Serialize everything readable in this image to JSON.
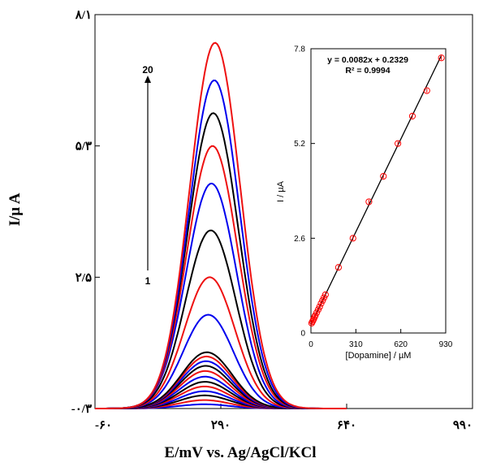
{
  "chart_data": [
    {
      "type": "line",
      "xlabel": "E/mV vs. Ag/AgCl/KCl",
      "ylabel": "I/µ A",
      "x_ticks": [
        "-۶۰",
        "۲۹۰",
        "۶۴۰",
        "۹۹۰"
      ],
      "x_tick_values": [
        -60,
        290,
        640,
        990
      ],
      "y_ticks": [
        "-۰/۳",
        "۲/۵",
        "۵/۳",
        "۸/۱"
      ],
      "y_tick_values": [
        -0.3,
        2.5,
        5.3,
        8.1
      ],
      "xlim": [
        -60,
        990
      ],
      "ylim": [
        -0.3,
        8.1
      ],
      "baseline": -0.3,
      "peak_width_mV": 70,
      "arrow_start_label": "1",
      "arrow_end_label": "20",
      "series_colors": [
        "#0000ee",
        "#ee1111",
        "#000000"
      ],
      "series": [
        {
          "peak_x": 244,
          "peak_y": -0.21
        },
        {
          "peak_x": 244,
          "peak_y": -0.12
        },
        {
          "peak_x": 245,
          "peak_y": -0.02
        },
        {
          "peak_x": 245,
          "peak_y": 0.07
        },
        {
          "peak_x": 245,
          "peak_y": 0.17
        },
        {
          "peak_x": 246,
          "peak_y": 0.27
        },
        {
          "peak_x": 246,
          "peak_y": 0.38
        },
        {
          "peak_x": 247,
          "peak_y": 0.5
        },
        {
          "peak_x": 248,
          "peak_y": 0.61
        },
        {
          "peak_x": 249,
          "peak_y": 0.71
        },
        {
          "peak_x": 250,
          "peak_y": 0.81
        },
        {
          "peak_x": 251,
          "peak_y": 0.9
        },
        {
          "peak_x": 255,
          "peak_y": 1.7
        },
        {
          "peak_x": 259,
          "peak_y": 2.5
        },
        {
          "peak_x": 262,
          "peak_y": 3.5
        },
        {
          "peak_x": 264,
          "peak_y": 4.5
        },
        {
          "peak_x": 267,
          "peak_y": 5.3
        },
        {
          "peak_x": 269,
          "peak_y": 6.0
        },
        {
          "peak_x": 272,
          "peak_y": 6.7
        },
        {
          "peak_x": 274,
          "peak_y": 7.5
        }
      ]
    },
    {
      "type": "scatter",
      "xlabel": "[Dopamine] / µM",
      "ylabel": "I / µA",
      "x_ticks": [
        "0",
        "310",
        "620",
        "930"
      ],
      "x_tick_values": [
        0,
        310,
        620,
        930
      ],
      "y_ticks": [
        "0",
        "2.6",
        "5.2",
        "7.8"
      ],
      "y_tick_values": [
        0,
        2.6,
        5.2,
        7.8
      ],
      "xlim": [
        0,
        930
      ],
      "ylim": [
        0,
        7.8
      ],
      "equation": "y = 0.0082x + 0.2329",
      "r_squared": "R² = 0.9994",
      "fit_slope": 0.0082,
      "fit_intercept": 0.2329,
      "point_color": "#ff0000",
      "x": [
        5,
        10,
        15,
        20,
        25,
        30,
        40,
        50,
        60,
        70,
        80,
        90,
        100,
        190,
        290,
        400,
        500,
        600,
        700,
        800,
        900
      ],
      "y": [
        0.27,
        0.31,
        0.35,
        0.39,
        0.44,
        0.48,
        0.56,
        0.64,
        0.72,
        0.81,
        0.89,
        0.97,
        1.05,
        1.8,
        2.6,
        3.6,
        4.3,
        5.2,
        5.95,
        6.65,
        7.55
      ]
    }
  ]
}
